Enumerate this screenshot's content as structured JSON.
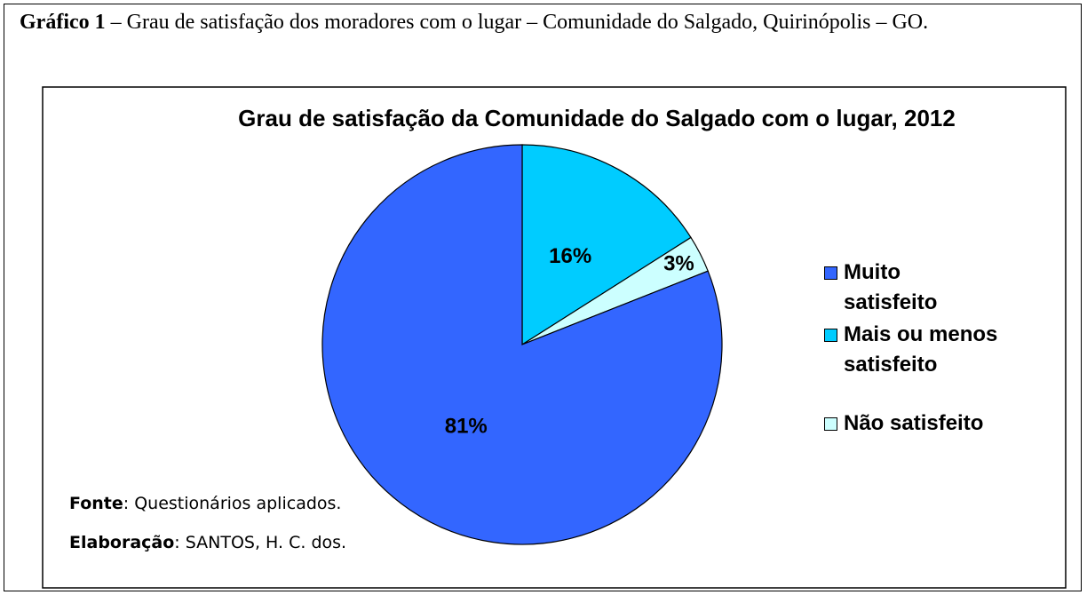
{
  "caption_label": "Gráfico 1",
  "caption_text": "– Grau de satisfação dos moradores com o lugar – Comunidade do Salgado, Quirinópolis – GO.",
  "chart_data": {
    "type": "pie",
    "title": "Grau de satisfação da Comunidade do Salgado com o lugar, 2012",
    "categories": [
      "Mais ou menos satisfeito",
      "Não satisfeito",
      "Muito satisfeito"
    ],
    "values": [
      16,
      3,
      81
    ],
    "value_labels": [
      "16%",
      "3%",
      "81%"
    ],
    "colors": [
      "#00ccff",
      "#ccffff",
      "#3366ff"
    ],
    "legend_order": [
      2,
      0,
      1
    ],
    "legend": "right"
  },
  "source": {
    "label": "Fonte",
    "text": ": Questionários aplicados."
  },
  "author": {
    "label": "Elaboração",
    "text": ": SANTOS,  H. C. dos."
  }
}
